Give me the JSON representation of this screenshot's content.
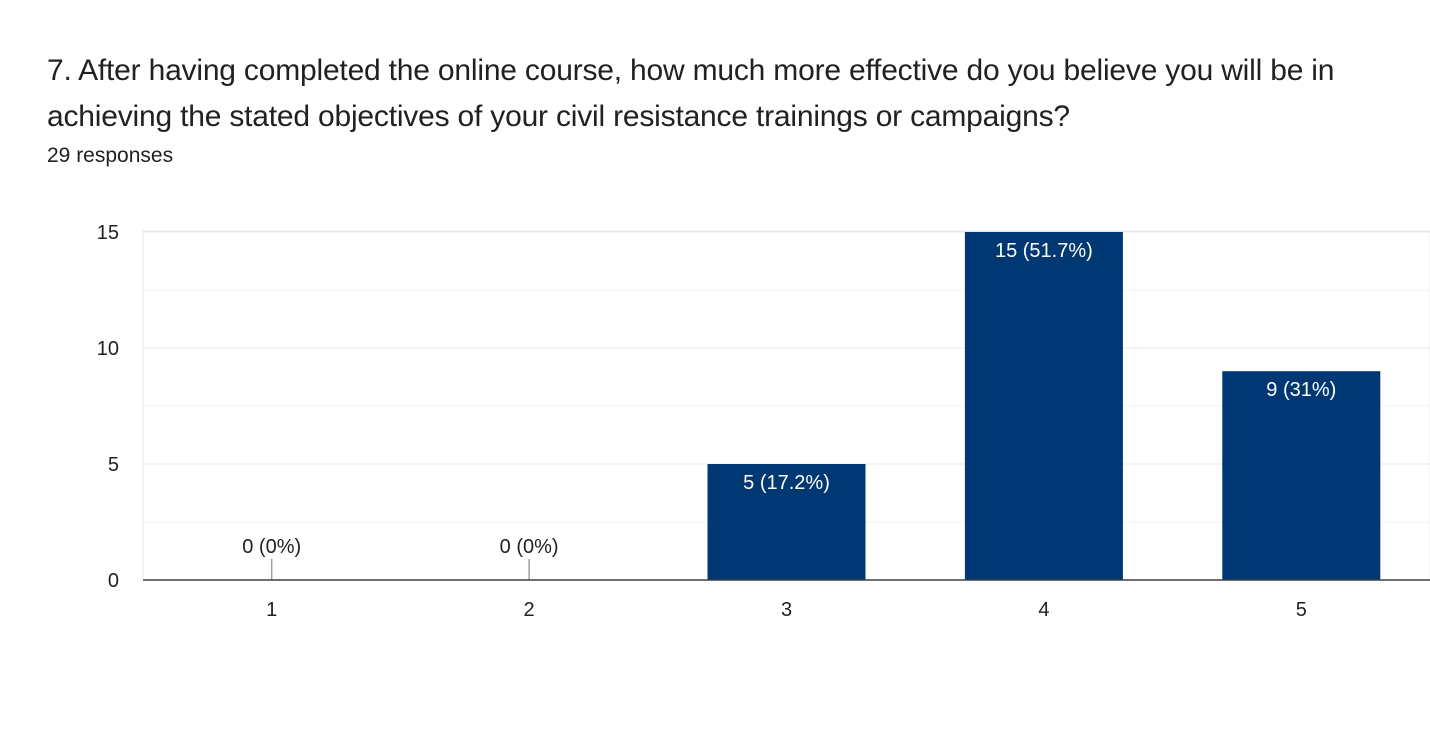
{
  "question": {
    "title": "7. After having completed the online course, how much more effective do you believe you will be in achieving the stated objectives of your civil resistance trainings or campaigns?",
    "responses": "29 responses"
  },
  "colors": {
    "bar": "#003873",
    "grid": "#e8e8e8",
    "axis": "#3c4043",
    "zero_marker": "#9aa0a6",
    "bar_label": "#ffffff",
    "outside_label": "#202124",
    "tick_label": "#202124"
  },
  "chart_data": {
    "type": "bar",
    "categories": [
      "1",
      "2",
      "3",
      "4",
      "5"
    ],
    "values": [
      0,
      0,
      5,
      15,
      9
    ],
    "data_labels": [
      "0 (0%)",
      "0 (0%)",
      "5 (17.2%)",
      "15 (51.7%)",
      "9 (31%)"
    ],
    "ylim": [
      0,
      15
    ],
    "yticks": [
      0,
      5,
      10,
      15
    ],
    "minor_gridlines": [
      2.5,
      7.5,
      12.5
    ],
    "grid": true,
    "legend": "none"
  }
}
